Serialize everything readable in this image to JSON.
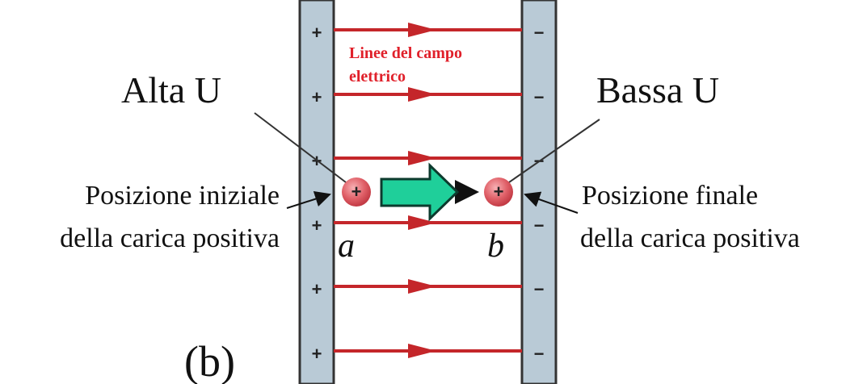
{
  "field_label": {
    "line1": "Linee del campo",
    "line2": "elettrico"
  },
  "high_energy_label": "Alta U",
  "low_energy_label": "Bassa U",
  "initial_position": {
    "line1": "Posizione iniziale",
    "line2": "della carica positiva"
  },
  "final_position": {
    "line1": "Posizione finale",
    "line2": "della carica positiva"
  },
  "point_a": "a",
  "point_b": "b",
  "charge_sign": "+",
  "panel_label": "(b)",
  "left_plate_signs": [
    "+",
    "+",
    "+",
    "+",
    "+",
    "+"
  ],
  "right_plate_signs": [
    "−",
    "−",
    "−",
    "−",
    "−",
    "−"
  ]
}
